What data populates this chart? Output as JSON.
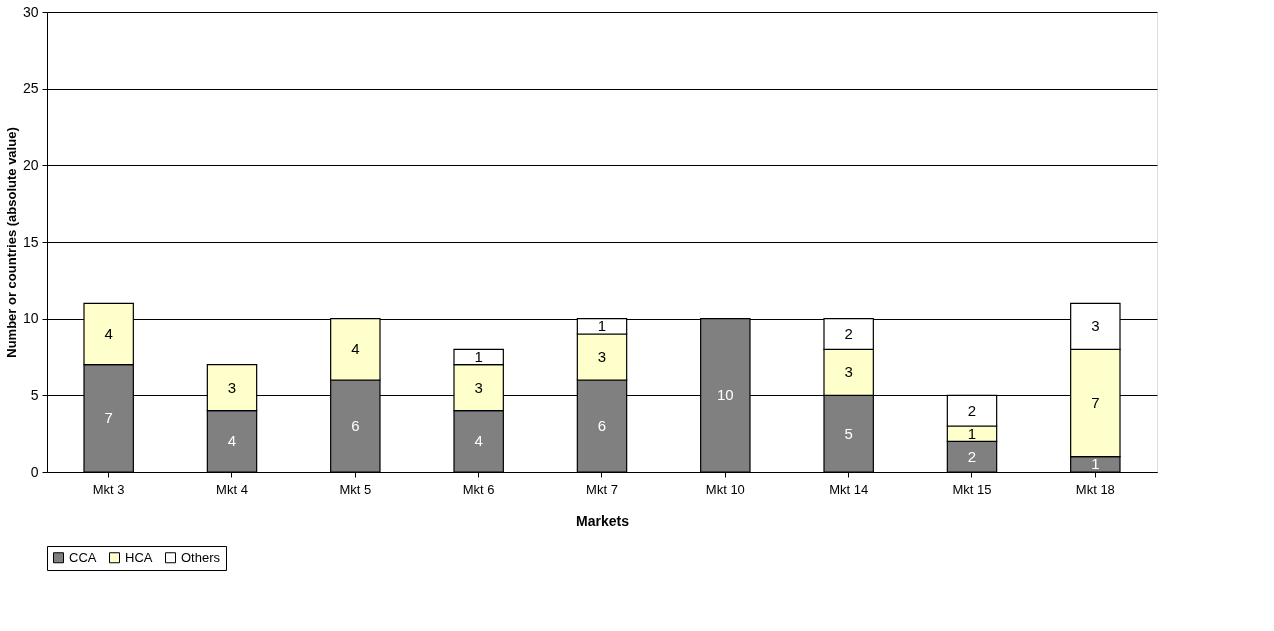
{
  "chart_data": {
    "type": "bar",
    "stacked": true,
    "xlabel": "Markets",
    "ylabel": "Number or countries (absolute value)",
    "categories": [
      "Mkt 3",
      "Mkt 4",
      "Mkt 5",
      "Mkt 6",
      "Mkt 7",
      "Mkt 10",
      "Mkt 14",
      "Mkt 15",
      "Mkt 18"
    ],
    "series": [
      {
        "name": "CCA",
        "color": "#808080",
        "values": [
          7,
          4,
          6,
          4,
          6,
          10,
          5,
          2,
          1
        ]
      },
      {
        "name": "HCA",
        "color": "#ffffcc",
        "values": [
          4,
          3,
          4,
          3,
          3,
          null,
          3,
          1,
          7
        ]
      },
      {
        "name": "Others",
        "color": "#ffffff",
        "values": [
          null,
          null,
          null,
          1,
          1,
          null,
          2,
          2,
          3
        ]
      }
    ],
    "ylim": [
      0,
      30
    ],
    "yticks": [
      0,
      5,
      10,
      15,
      20,
      25,
      30
    ],
    "grid": "y",
    "legend": "bottom",
    "data_labels": true
  }
}
